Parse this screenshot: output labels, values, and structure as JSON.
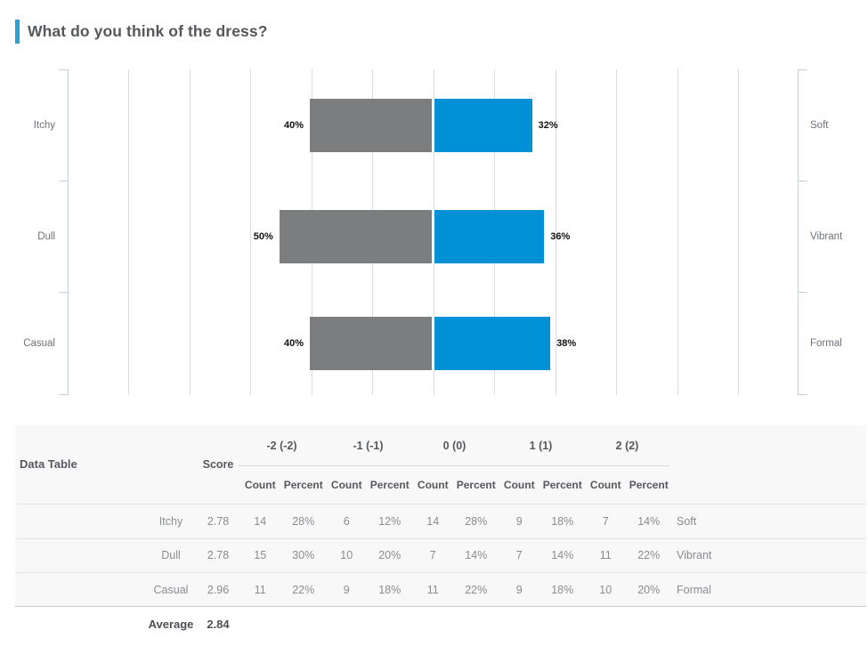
{
  "title": "What do you think of the dress?",
  "accent_color": "#2a9fda",
  "chart_data": {
    "type": "bar",
    "variant": "diverging-horizontal",
    "title": "What do you think of the dress?",
    "legend": "none",
    "grid": "on",
    "axis": {
      "min_pct": -100,
      "max_pct": 100,
      "gridline_step_pct": 20
    },
    "colors": {
      "negative_bar": "#7b7d7f",
      "positive_bar": "#0090d5"
    },
    "rows": [
      {
        "left_label": "Itchy",
        "right_label": "Soft",
        "negative_pct": 40,
        "positive_pct": 32,
        "negative_text": "40%",
        "positive_text": "32%"
      },
      {
        "left_label": "Dull",
        "right_label": "Vibrant",
        "negative_pct": 50,
        "positive_pct": 36,
        "negative_text": "50%",
        "positive_text": "36%"
      },
      {
        "left_label": "Casual",
        "right_label": "Formal",
        "negative_pct": 40,
        "positive_pct": 38,
        "negative_text": "40%",
        "positive_text": "38%"
      }
    ]
  },
  "table": {
    "title": "Data Table",
    "score_header": "Score",
    "group_headers": [
      "-2 (-2)",
      "-1 (-1)",
      "0 (0)",
      "1 (1)",
      "2 (2)"
    ],
    "sub_headers": [
      "Count",
      "Percent"
    ],
    "rows": [
      {
        "label": "Itchy",
        "score": "2.78",
        "values": [
          "14",
          "28%",
          "6",
          "12%",
          "14",
          "28%",
          "9",
          "18%",
          "7",
          "14%"
        ],
        "pole": "Soft"
      },
      {
        "label": "Dull",
        "score": "2.78",
        "values": [
          "15",
          "30%",
          "10",
          "20%",
          "7",
          "14%",
          "7",
          "14%",
          "11",
          "22%"
        ],
        "pole": "Vibrant"
      },
      {
        "label": "Casual",
        "score": "2.96",
        "values": [
          "11",
          "22%",
          "9",
          "18%",
          "11",
          "22%",
          "9",
          "18%",
          "10",
          "20%"
        ],
        "pole": "Formal"
      }
    ],
    "average": {
      "label": "Average",
      "value": "2.84"
    }
  }
}
